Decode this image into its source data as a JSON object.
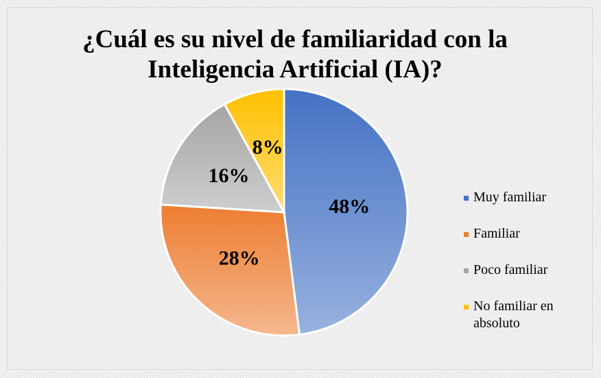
{
  "chart_data": {
    "type": "pie",
    "title": "¿Cuál es su nivel de familiaridad con la Inteligencia Artificial (IA)?",
    "categories": [
      "Muy familiar",
      "Familiar",
      "Poco familiar",
      "No familiar en absoluto"
    ],
    "values": [
      48,
      28,
      16,
      8
    ],
    "value_labels": [
      "48%",
      "28%",
      "16%",
      "8%"
    ],
    "colors": [
      "#4472c4",
      "#ed7d31",
      "#a5a5a5",
      "#ffc000"
    ],
    "legend": "right"
  }
}
